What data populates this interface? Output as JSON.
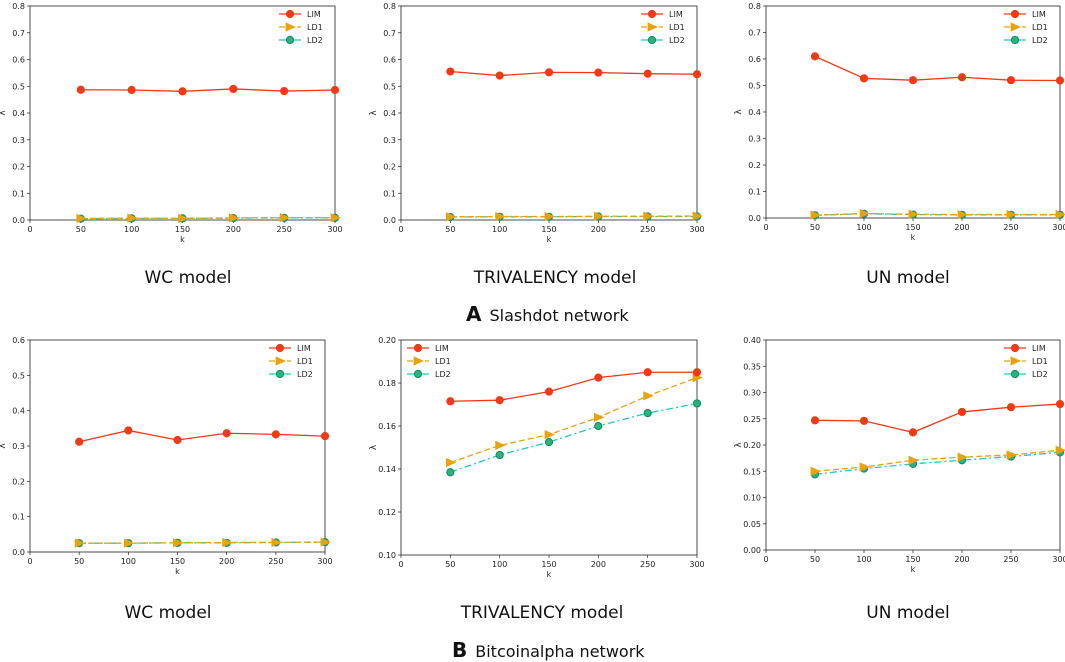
{
  "figure": {
    "captions": [
      "WC model",
      "TRIVALENCY model",
      "UN model",
      "WC model",
      "TRIVALENCY model",
      "UN model"
    ],
    "sections": [
      {
        "letter": "A",
        "label": "Slashdot network"
      },
      {
        "letter": "B",
        "label": "Bitcoinalpha network"
      }
    ]
  },
  "colors": {
    "LIM": "#f03a17",
    "LD1": "#e8a20c",
    "LD2": "#1fc9c2",
    "LD2_fill": "#2db37a"
  },
  "chart_data": [
    {
      "type": "line",
      "title": "WC model",
      "xlabel": "k",
      "ylabel": "λ",
      "x": [
        50,
        100,
        150,
        200,
        250,
        300
      ],
      "xlim": [
        0,
        300
      ],
      "xticks": [
        0,
        50,
        100,
        150,
        200,
        250,
        300
      ],
      "ylim": [
        0,
        0.8
      ],
      "yticks": [
        "0.0",
        "0.1",
        "0.2",
        "0.3",
        "0.4",
        "0.5",
        "0.6",
        "0.7",
        "0.8"
      ],
      "legend": "top-right",
      "series": [
        {
          "name": "LIM",
          "values": [
            0.487,
            0.486,
            0.481,
            0.49,
            0.482,
            0.486
          ]
        },
        {
          "name": "LD1",
          "values": [
            0.006,
            0.007,
            0.006,
            0.008,
            0.009,
            0.009
          ]
        },
        {
          "name": "LD2",
          "values": [
            0.005,
            0.006,
            0.006,
            0.007,
            0.008,
            0.008
          ]
        }
      ]
    },
    {
      "type": "line",
      "title": "TRIVALENCY model",
      "xlabel": "k",
      "ylabel": "λ",
      "x": [
        50,
        100,
        150,
        200,
        250,
        300
      ],
      "xlim": [
        0,
        300
      ],
      "xticks": [
        0,
        50,
        100,
        150,
        200,
        250,
        300
      ],
      "ylim": [
        0,
        0.8
      ],
      "yticks": [
        "0.0",
        "0.1",
        "0.2",
        "0.3",
        "0.4",
        "0.5",
        "0.6",
        "0.7",
        "0.8"
      ],
      "legend": "top-right",
      "series": [
        {
          "name": "LIM",
          "values": [
            0.555,
            0.54,
            0.552,
            0.551,
            0.547,
            0.545
          ]
        },
        {
          "name": "LD1",
          "values": [
            0.012,
            0.013,
            0.013,
            0.014,
            0.014,
            0.015
          ]
        },
        {
          "name": "LD2",
          "values": [
            0.011,
            0.012,
            0.012,
            0.013,
            0.013,
            0.013
          ]
        }
      ]
    },
    {
      "type": "line",
      "title": "UN model",
      "xlabel": "k",
      "ylabel": "λ",
      "x": [
        50,
        100,
        150,
        200,
        250,
        300
      ],
      "xlim": [
        0,
        300
      ],
      "xticks": [
        0,
        50,
        100,
        150,
        200,
        250,
        300
      ],
      "ylim": [
        0,
        0.8
      ],
      "yticks": [
        "0.0",
        "0.1",
        "0.2",
        "0.3",
        "0.4",
        "0.5",
        "0.6",
        "0.7",
        "0.8"
      ],
      "legend": "top-right",
      "series": [
        {
          "name": "LIM",
          "values": [
            0.61,
            0.527,
            0.52,
            0.531,
            0.52,
            0.519
          ]
        },
        {
          "name": "LD1",
          "values": [
            0.011,
            0.017,
            0.014,
            0.013,
            0.013,
            0.013
          ]
        },
        {
          "name": "LD2",
          "values": [
            0.01,
            0.016,
            0.013,
            0.012,
            0.012,
            0.012
          ]
        }
      ]
    },
    {
      "type": "line",
      "title": "WC model",
      "xlabel": "k",
      "ylabel": "λ",
      "x": [
        50,
        100,
        150,
        200,
        250,
        300
      ],
      "xlim": [
        0,
        300
      ],
      "xticks": [
        0,
        50,
        100,
        150,
        200,
        250,
        300
      ],
      "ylim": [
        0,
        0.6
      ],
      "yticks": [
        "0.0",
        "0.1",
        "0.2",
        "0.3",
        "0.4",
        "0.5",
        "0.6"
      ],
      "legend": "top-right",
      "series": [
        {
          "name": "LIM",
          "values": [
            0.312,
            0.344,
            0.317,
            0.336,
            0.333,
            0.328
          ]
        },
        {
          "name": "LD1",
          "values": [
            0.025,
            0.025,
            0.026,
            0.027,
            0.027,
            0.028
          ]
        },
        {
          "name": "LD2",
          "values": [
            0.025,
            0.025,
            0.026,
            0.026,
            0.027,
            0.028
          ]
        }
      ]
    },
    {
      "type": "line",
      "title": "TRIVALENCY model",
      "xlabel": "k",
      "ylabel": "λ",
      "x": [
        50,
        100,
        150,
        200,
        250,
        300
      ],
      "xlim": [
        0,
        300
      ],
      "xticks": [
        0,
        50,
        100,
        150,
        200,
        250,
        300
      ],
      "ylim": [
        0.1,
        0.2
      ],
      "yticks": [
        "0.10",
        "0.12",
        "0.14",
        "0.16",
        "0.18",
        "0.20"
      ],
      "legend": "top-left",
      "series": [
        {
          "name": "LIM",
          "values": [
            0.1715,
            0.172,
            0.176,
            0.1825,
            0.185,
            0.185
          ]
        },
        {
          "name": "LD1",
          "values": [
            0.143,
            0.151,
            0.156,
            0.164,
            0.174,
            0.1825
          ]
        },
        {
          "name": "LD2",
          "values": [
            0.1385,
            0.1465,
            0.1525,
            0.16,
            0.166,
            0.1705
          ]
        }
      ]
    },
    {
      "type": "line",
      "title": "UN model",
      "xlabel": "k",
      "ylabel": "λ",
      "x": [
        50,
        100,
        150,
        200,
        250,
        300
      ],
      "xlim": [
        0,
        300
      ],
      "xticks": [
        0,
        50,
        100,
        150,
        200,
        250,
        300
      ],
      "ylim": [
        0,
        0.4
      ],
      "yticks": [
        "0.00",
        "0.05",
        "0.10",
        "0.15",
        "0.20",
        "0.25",
        "0.30",
        "0.35",
        "0.40"
      ],
      "legend": "top-right",
      "series": [
        {
          "name": "LIM",
          "values": [
            0.247,
            0.246,
            0.224,
            0.263,
            0.272,
            0.278
          ]
        },
        {
          "name": "LD1",
          "values": [
            0.15,
            0.158,
            0.171,
            0.177,
            0.181,
            0.19
          ]
        },
        {
          "name": "LD2",
          "values": [
            0.144,
            0.155,
            0.164,
            0.171,
            0.178,
            0.186
          ]
        }
      ]
    }
  ]
}
